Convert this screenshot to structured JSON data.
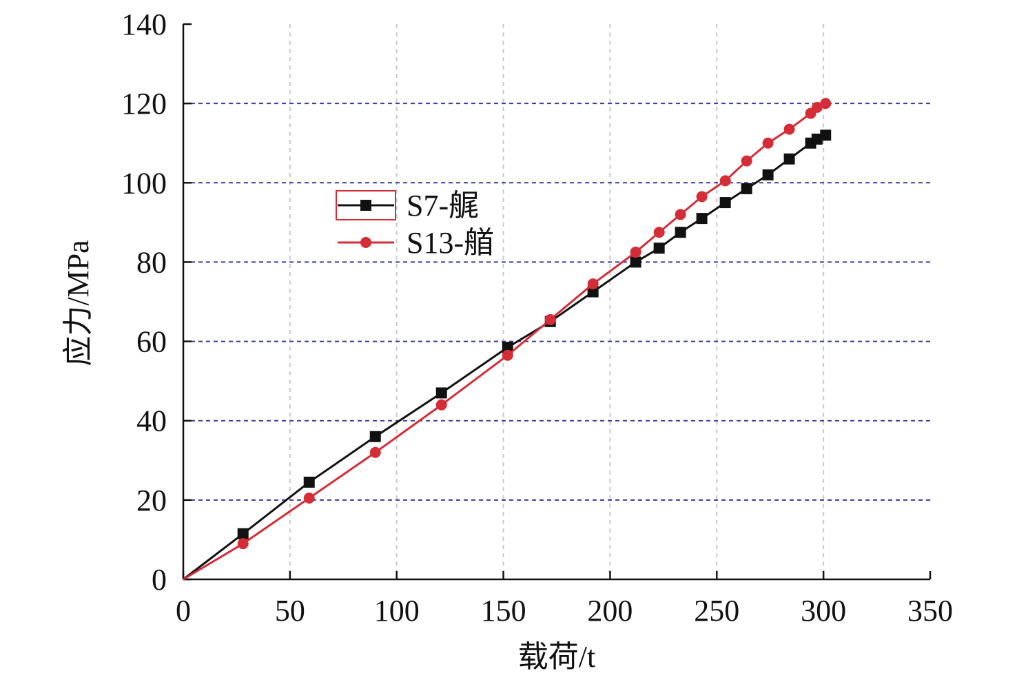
{
  "chart_data": {
    "type": "line",
    "xlabel": "载荷/t",
    "ylabel": "应力/MPa",
    "xlim": [
      0,
      350
    ],
    "ylim": [
      0,
      140
    ],
    "xticks": [
      0,
      50,
      100,
      150,
      200,
      250,
      300,
      350
    ],
    "yticks": [
      0,
      20,
      40,
      60,
      80,
      100,
      120,
      140
    ],
    "grid": true,
    "legend_position": "upper-left",
    "series": [
      {
        "name": "S7-艉",
        "color": "#111111",
        "marker": "square",
        "x": [
          0,
          28,
          59,
          90,
          121,
          152,
          172,
          192,
          212,
          223,
          233,
          243,
          254,
          264,
          274,
          284,
          294,
          297,
          301
        ],
        "y": [
          0,
          11.5,
          24.5,
          36,
          47,
          58.5,
          65,
          72.5,
          80,
          83.5,
          87.5,
          91,
          95,
          98.5,
          102,
          106,
          110,
          111,
          112
        ]
      },
      {
        "name": "S13-艏",
        "color": "#d42d37",
        "marker": "circle",
        "x": [
          0,
          28,
          59,
          90,
          121,
          152,
          172,
          192,
          212,
          223,
          233,
          243,
          254,
          264,
          274,
          284,
          294,
          297,
          301
        ],
        "y": [
          0,
          9,
          20.5,
          32,
          44,
          56.5,
          65.5,
          74.5,
          82.5,
          87.5,
          92,
          96.5,
          100.5,
          105.5,
          110,
          113.5,
          117.5,
          119,
          120
        ]
      }
    ]
  }
}
